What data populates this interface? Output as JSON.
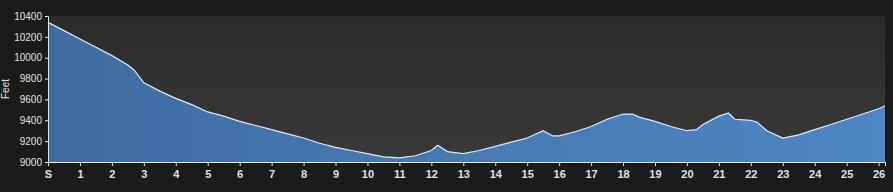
{
  "chart_data": {
    "type": "area",
    "y_label": "Feet",
    "color": "#4f86c6",
    "x": [
      0,
      0.5,
      1,
      1.5,
      2,
      2.5,
      2.7,
      3,
      3.5,
      4,
      4.5,
      5,
      5.5,
      6,
      6.5,
      7,
      7.5,
      8,
      8.5,
      9,
      9.5,
      10,
      10.5,
      11,
      11.5,
      12,
      12.2,
      12.5,
      13,
      13.5,
      14,
      14.5,
      15,
      15.5,
      15.8,
      16,
      16.5,
      17,
      17.5,
      18,
      18.3,
      18.5,
      19,
      19.5,
      20,
      20.3,
      20.5,
      21,
      21.3,
      21.5,
      22,
      22.2,
      22.5,
      23,
      23.5,
      24,
      24.5,
      25,
      25.5,
      26,
      26.2
    ],
    "values": [
      10340,
      10260,
      10180,
      10100,
      10020,
      9930,
      9880,
      9760,
      9680,
      9610,
      9550,
      9480,
      9440,
      9390,
      9350,
      9310,
      9270,
      9230,
      9180,
      9140,
      9110,
      9080,
      9050,
      9040,
      9060,
      9110,
      9160,
      9100,
      9080,
      9110,
      9150,
      9190,
      9230,
      9300,
      9250,
      9250,
      9290,
      9340,
      9410,
      9460,
      9460,
      9430,
      9390,
      9340,
      9300,
      9310,
      9360,
      9440,
      9470,
      9410,
      9400,
      9380,
      9300,
      9230,
      9260,
      9310,
      9360,
      9410,
      9460,
      9510,
      9540
    ],
    "xlim": [
      0,
      26.2
    ],
    "xticks": [
      {
        "value": 0,
        "label": "S"
      },
      1,
      2,
      3,
      4,
      5,
      6,
      7,
      8,
      9,
      10,
      11,
      12,
      13,
      14,
      15,
      16,
      17,
      18,
      19,
      20,
      21,
      22,
      23,
      24,
      25,
      26
    ],
    "ylim": [
      9000,
      10400
    ],
    "yticks": [
      9000,
      9200,
      9400,
      9600,
      9800,
      10000,
      10200,
      10400
    ],
    "grid": false
  }
}
